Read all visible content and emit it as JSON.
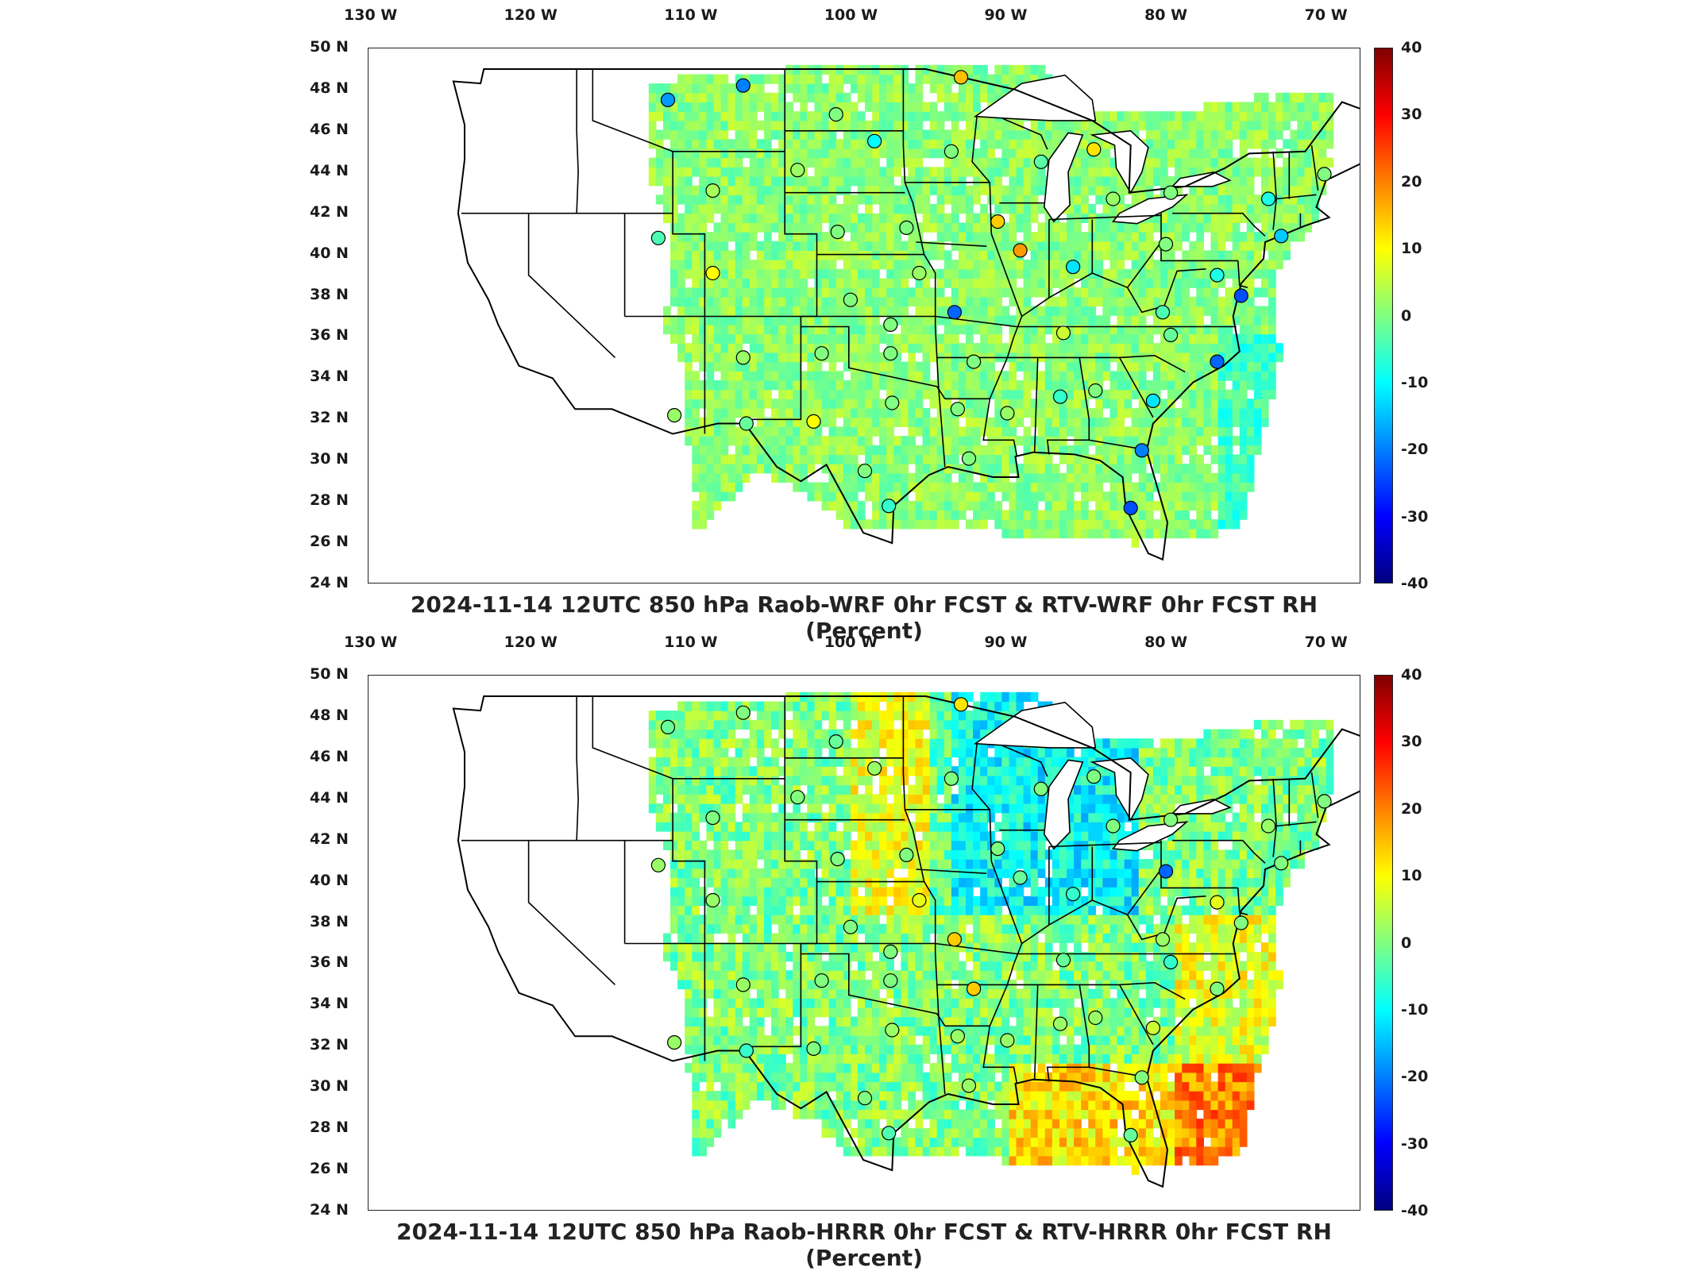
{
  "lon_labels": [
    "130 W",
    "120 W",
    "110 W",
    "100 W",
    "90 W",
    "80 W",
    "70 W"
  ],
  "lat_labels": [
    "50 N",
    "48 N",
    "46 N",
    "44 N",
    "42 N",
    "40 N",
    "38 N",
    "36 N",
    "34 N",
    "32 N",
    "30 N",
    "28 N",
    "26 N",
    "24 N"
  ],
  "colorbar": {
    "ticks": [
      "40",
      "30",
      "20",
      "10",
      "0",
      "-10",
      "-20",
      "-30",
      "-40"
    ],
    "min": -40,
    "max": 40
  },
  "panels": [
    {
      "title": "2024-11-14 12UTC 850 hPa Raob-WRF 0hr FCST & RTV-WRF 0hr FCST RH (Percent)",
      "stations": [
        {
          "lon": -111.3,
          "lat": 47.5,
          "v": -18
        },
        {
          "lon": -106.6,
          "lat": 48.2,
          "v": -20
        },
        {
          "lon": -93.0,
          "lat": 48.6,
          "v": 15
        },
        {
          "lon": -100.8,
          "lat": 46.8,
          "v": 0
        },
        {
          "lon": -98.4,
          "lat": 45.5,
          "v": -10
        },
        {
          "lon": -93.6,
          "lat": 45.0,
          "v": 0
        },
        {
          "lon": -103.2,
          "lat": 44.1,
          "v": 2
        },
        {
          "lon": -108.5,
          "lat": 43.1,
          "v": 3
        },
        {
          "lon": -88.0,
          "lat": 44.5,
          "v": -3
        },
        {
          "lon": -84.7,
          "lat": 45.1,
          "v": 12
        },
        {
          "lon": -83.5,
          "lat": 42.7,
          "v": 2
        },
        {
          "lon": -73.8,
          "lat": 42.7,
          "v": -8
        },
        {
          "lon": -70.3,
          "lat": 43.9,
          "v": 0
        },
        {
          "lon": -79.9,
          "lat": 43.0,
          "v": 0
        },
        {
          "lon": -111.9,
          "lat": 40.8,
          "v": -4
        },
        {
          "lon": -100.7,
          "lat": 41.1,
          "v": 0
        },
        {
          "lon": -96.4,
          "lat": 41.3,
          "v": 0
        },
        {
          "lon": -90.7,
          "lat": 41.6,
          "v": 14
        },
        {
          "lon": -89.3,
          "lat": 40.2,
          "v": 18
        },
        {
          "lon": -86.0,
          "lat": 39.4,
          "v": -12
        },
        {
          "lon": -80.2,
          "lat": 40.5,
          "v": 0
        },
        {
          "lon": -73.0,
          "lat": 40.9,
          "v": -14
        },
        {
          "lon": -77.0,
          "lat": 39.0,
          "v": -8
        },
        {
          "lon": -75.5,
          "lat": 38.0,
          "v": -24
        },
        {
          "lon": -108.5,
          "lat": 39.1,
          "v": 10
        },
        {
          "lon": -95.6,
          "lat": 39.1,
          "v": 2
        },
        {
          "lon": -99.9,
          "lat": 37.8,
          "v": 0
        },
        {
          "lon": -93.4,
          "lat": 37.2,
          "v": -22
        },
        {
          "lon": -80.4,
          "lat": 37.2,
          "v": -4
        },
        {
          "lon": -97.4,
          "lat": 36.6,
          "v": 0
        },
        {
          "lon": -97.4,
          "lat": 35.2,
          "v": 0
        },
        {
          "lon": -101.7,
          "lat": 35.2,
          "v": 0
        },
        {
          "lon": -106.6,
          "lat": 35.0,
          "v": 2
        },
        {
          "lon": -92.2,
          "lat": 34.8,
          "v": 0
        },
        {
          "lon": -86.6,
          "lat": 36.2,
          "v": 6
        },
        {
          "lon": -79.9,
          "lat": 36.1,
          "v": -2
        },
        {
          "lon": -86.8,
          "lat": 33.1,
          "v": -6
        },
        {
          "lon": -84.6,
          "lat": 33.4,
          "v": 0
        },
        {
          "lon": -81.0,
          "lat": 32.9,
          "v": -12
        },
        {
          "lon": -77.0,
          "lat": 34.8,
          "v": -22
        },
        {
          "lon": -97.3,
          "lat": 32.8,
          "v": 0
        },
        {
          "lon": -102.2,
          "lat": 31.9,
          "v": 10
        },
        {
          "lon": -106.4,
          "lat": 31.8,
          "v": -2
        },
        {
          "lon": -110.9,
          "lat": 32.2,
          "v": 2
        },
        {
          "lon": -93.2,
          "lat": 32.5,
          "v": 0
        },
        {
          "lon": -90.1,
          "lat": 32.3,
          "v": 2
        },
        {
          "lon": -92.5,
          "lat": 30.1,
          "v": 0
        },
        {
          "lon": -99.0,
          "lat": 29.5,
          "v": 0
        },
        {
          "lon": -97.5,
          "lat": 27.8,
          "v": -6
        },
        {
          "lon": -81.7,
          "lat": 30.5,
          "v": -20
        },
        {
          "lon": -82.4,
          "lat": 27.7,
          "v": -24
        }
      ]
    },
    {
      "title": "2024-11-14 12UTC 850 hPa Raob-HRRR 0hr FCST & RTV-HRRR 0hr FCST RH (Percent)",
      "stations": [
        {
          "lon": -111.3,
          "lat": 47.5,
          "v": -2
        },
        {
          "lon": -106.6,
          "lat": 48.2,
          "v": 0
        },
        {
          "lon": -93.0,
          "lat": 48.6,
          "v": 12
        },
        {
          "lon": -100.8,
          "lat": 46.8,
          "v": -2
        },
        {
          "lon": -98.4,
          "lat": 45.5,
          "v": 2
        },
        {
          "lon": -93.6,
          "lat": 45.0,
          "v": 0
        },
        {
          "lon": -103.2,
          "lat": 44.1,
          "v": 0
        },
        {
          "lon": -108.5,
          "lat": 43.1,
          "v": 0
        },
        {
          "lon": -88.0,
          "lat": 44.5,
          "v": 0
        },
        {
          "lon": -84.7,
          "lat": 45.1,
          "v": 0
        },
        {
          "lon": -83.5,
          "lat": 42.7,
          "v": 0
        },
        {
          "lon": -73.8,
          "lat": 42.7,
          "v": 2
        },
        {
          "lon": -70.3,
          "lat": 43.9,
          "v": 0
        },
        {
          "lon": -79.9,
          "lat": 43.0,
          "v": 0
        },
        {
          "lon": -111.9,
          "lat": 40.8,
          "v": 2
        },
        {
          "lon": -100.7,
          "lat": 41.1,
          "v": 0
        },
        {
          "lon": -96.4,
          "lat": 41.3,
          "v": 0
        },
        {
          "lon": -90.7,
          "lat": 41.6,
          "v": 0
        },
        {
          "lon": -89.3,
          "lat": 40.2,
          "v": -2
        },
        {
          "lon": -86.0,
          "lat": 39.4,
          "v": -6
        },
        {
          "lon": -80.2,
          "lat": 40.5,
          "v": -22
        },
        {
          "lon": -73.0,
          "lat": 40.9,
          "v": 0
        },
        {
          "lon": -77.0,
          "lat": 39.0,
          "v": 8
        },
        {
          "lon": -75.5,
          "lat": 38.0,
          "v": 0
        },
        {
          "lon": -108.5,
          "lat": 39.1,
          "v": 2
        },
        {
          "lon": -95.6,
          "lat": 39.1,
          "v": 8
        },
        {
          "lon": -99.9,
          "lat": 37.8,
          "v": 0
        },
        {
          "lon": -93.4,
          "lat": 37.2,
          "v": 14
        },
        {
          "lon": -80.4,
          "lat": 37.2,
          "v": 2
        },
        {
          "lon": -97.4,
          "lat": 36.6,
          "v": 0
        },
        {
          "lon": -97.4,
          "lat": 35.2,
          "v": 0
        },
        {
          "lon": -101.7,
          "lat": 35.2,
          "v": 0
        },
        {
          "lon": -106.6,
          "lat": 35.0,
          "v": 2
        },
        {
          "lon": -92.2,
          "lat": 34.8,
          "v": 14
        },
        {
          "lon": -86.6,
          "lat": 36.2,
          "v": -2
        },
        {
          "lon": -79.9,
          "lat": 36.1,
          "v": -6
        },
        {
          "lon": -86.8,
          "lat": 33.1,
          "v": 2
        },
        {
          "lon": -84.6,
          "lat": 33.4,
          "v": 2
        },
        {
          "lon": -81.0,
          "lat": 32.9,
          "v": 6
        },
        {
          "lon": -77.0,
          "lat": 34.8,
          "v": 0
        },
        {
          "lon": -97.3,
          "lat": 32.8,
          "v": 2
        },
        {
          "lon": -102.2,
          "lat": 31.9,
          "v": 0
        },
        {
          "lon": -106.4,
          "lat": 31.8,
          "v": -6
        },
        {
          "lon": -110.9,
          "lat": 32.2,
          "v": 2
        },
        {
          "lon": -93.2,
          "lat": 32.5,
          "v": 2
        },
        {
          "lon": -90.1,
          "lat": 32.3,
          "v": 2
        },
        {
          "lon": -92.5,
          "lat": 30.1,
          "v": 2
        },
        {
          "lon": -99.0,
          "lat": 29.5,
          "v": 0
        },
        {
          "lon": -97.5,
          "lat": 27.8,
          "v": -4
        },
        {
          "lon": -81.7,
          "lat": 30.5,
          "v": 0
        },
        {
          "lon": -82.4,
          "lat": 27.7,
          "v": -2
        }
      ]
    }
  ]
}
